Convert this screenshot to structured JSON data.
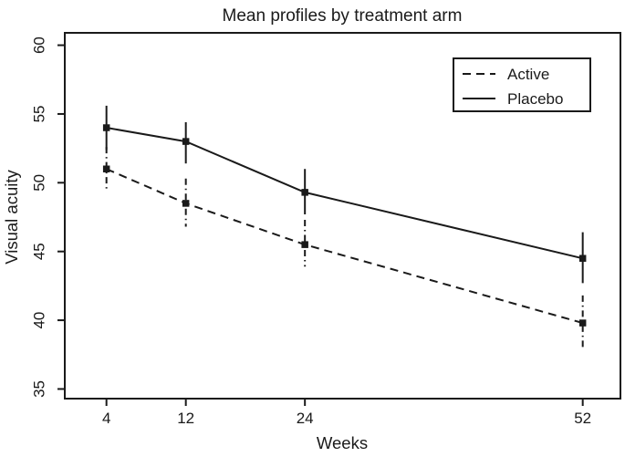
{
  "chart_data": {
    "type": "line",
    "title": "Mean profiles by treatment arm",
    "xlabel": "Weeks",
    "ylabel": "Visual acuity",
    "x": [
      4,
      12,
      24,
      52
    ],
    "x_tick_labels": [
      "4",
      "12",
      "24",
      "52"
    ],
    "y_ticks": [
      35,
      40,
      45,
      50,
      55,
      60
    ],
    "y_tick_labels": [
      "35",
      "40",
      "45",
      "50",
      "55",
      "60"
    ],
    "xlim": [
      -0.2,
      55.8
    ],
    "ylim": [
      34.3,
      60.9
    ],
    "grid": false,
    "legend_position": "top-right",
    "marker": "filled-square",
    "line_color": "#1a1a1a",
    "background_color": "#ffffff",
    "series": [
      {
        "name": "Active",
        "line_style": "dashed",
        "errorbar_style": "dash-dot",
        "values": [
          51.0,
          48.5,
          45.5,
          39.8
        ],
        "ci_lower": [
          49.4,
          46.8,
          43.9,
          38.0
        ],
        "ci_upper": [
          52.6,
          50.3,
          47.3,
          41.8
        ]
      },
      {
        "name": "Placebo",
        "line_style": "solid",
        "errorbar_style": "solid",
        "values": [
          54.0,
          53.0,
          49.3,
          44.5
        ],
        "ci_lower": [
          52.4,
          51.4,
          47.7,
          42.7
        ],
        "ci_upper": [
          55.6,
          54.4,
          51.0,
          46.4
        ]
      }
    ]
  }
}
